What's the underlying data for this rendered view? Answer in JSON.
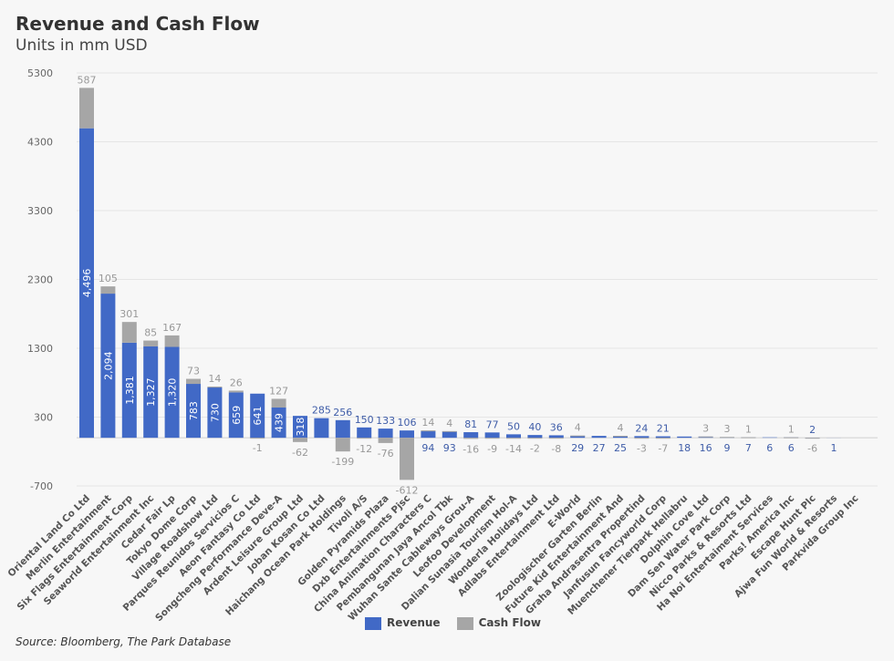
{
  "chart_data": {
    "type": "bar",
    "stacked": true,
    "title": "Revenue and Cash Flow",
    "subtitle": "Units in mm USD",
    "source": "Source: Bloomberg, The Park Database",
    "ylim": [
      -700,
      5300
    ],
    "yticks": [
      5300,
      4300,
      3300,
      2300,
      1300,
      300,
      -700
    ],
    "grid": true,
    "legend_position": "bottom",
    "categories": [
      "Oriental Land Co Ltd",
      "Merlin Entertainment",
      "Six Flags Entertainment Corp",
      "Seaworld Entertainment Inc",
      "Cedar Fair Lp",
      "Tokyo Dome Corp",
      "Village Roadshow Ltd",
      "Parques Reunidos Servicios C",
      "Aeon Fantasy Co Ltd",
      "Songcheng Performance Deve-A",
      "Ardent Leisure Group Ltd",
      "Joban Kosan Co Ltd",
      "Haichang Ocean Park Holdings",
      "Tivoli A/S",
      "Golden Pyramids Plaza",
      "Dxb Entertainments Pjsc",
      "China Animation Characters C",
      "Pembangunan Jaya Ancol Tbk",
      "Wuhan Sante Cableways Grou-A",
      "Leofoo Development",
      "Dalian Sunasia Tourism Hol-A",
      "Wonderla Holidays Ltd",
      "Adlabs Entertainment Ltd",
      "E-World",
      "Zoologischer Garten Berlin",
      "Future Kid Entertainment And",
      "Graha Andrasentra Propertind",
      "Janfusun Fancyworld Corp",
      "Muenchener Tierpark Hellabru",
      "Dolphin Cove Ltd",
      "Dam Sen Water Park Corp",
      "Nicco Parks & Resorts Ltd",
      "Ha Noi Entertaiment Services",
      "Parks! America Inc",
      "Escape Hunt Plc",
      "Ajwa Fun World & Resorts",
      "Parkvida Group Inc"
    ],
    "series": [
      {
        "name": "Revenue",
        "color": "#4169c6",
        "values": [
          4496,
          2094,
          1381,
          1327,
          1320,
          783,
          730,
          659,
          641,
          439,
          318,
          285,
          256,
          150,
          133,
          106,
          94,
          93,
          81,
          77,
          50,
          40,
          36,
          29,
          27,
          25,
          24,
          21,
          18,
          16,
          9,
          7,
          6,
          6,
          2,
          1,
          null
        ]
      },
      {
        "name": "Cash Flow",
        "color": "#a6a6a6",
        "values": [
          587,
          105,
          301,
          85,
          167,
          73,
          14,
          26,
          -1,
          127,
          -62,
          null,
          -199,
          -12,
          -76,
          -612,
          14,
          4,
          -16,
          -9,
          -14,
          -2,
          -8,
          4,
          null,
          4,
          -3,
          -7,
          null,
          3,
          3,
          1,
          null,
          1,
          -6,
          null,
          null
        ]
      }
    ]
  }
}
